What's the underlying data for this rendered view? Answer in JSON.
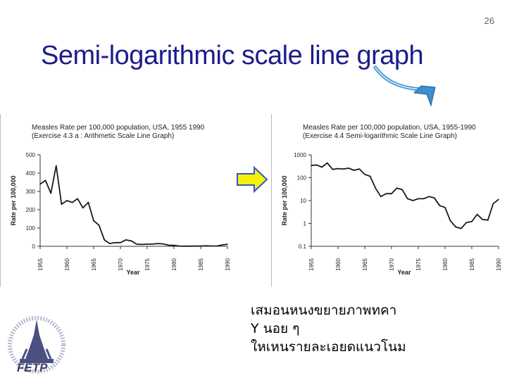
{
  "page_number": "26",
  "slide_title": "Semi-logarithmic scale line graph",
  "caption_lines": [
    "เสมอนหนงขยายภาพทคา",
    "Y นอย  ๆ",
    "ใหเหนรายละเอยดแนวโนม"
  ],
  "logo_text": "FETP",
  "colors": {
    "title": "#1c1c8c",
    "line": "#1a1a1a",
    "arrow_fill": "#f5f10a",
    "arrow_stroke": "#3355cc",
    "curve": "#3a8fd0"
  },
  "icons": {
    "curved_arrow": "curved-arrow-icon",
    "block_arrow": "right-arrow-icon",
    "logo": "temple-logo-icon"
  },
  "chart_data": [
    {
      "type": "line",
      "title": "Measles Rate per 100,000 population, USA, 1955 1990",
      "subtitle": "(Exercise 4.3 a : Arithmetic Scale Line Graph)",
      "xlabel": "Year",
      "ylabel": "Rate per 100,000",
      "yscale": "linear",
      "ylim": [
        0,
        500
      ],
      "yticks": [
        "0",
        "100",
        "200",
        "300",
        "400",
        "500"
      ],
      "xticks": [
        "1955",
        "1960",
        "1965",
        "1970",
        "1975",
        "1980",
        "1985",
        "1990"
      ],
      "x": [
        1955,
        1956,
        1957,
        1958,
        1959,
        1960,
        1961,
        1962,
        1963,
        1964,
        1965,
        1966,
        1967,
        1968,
        1969,
        1970,
        1971,
        1972,
        1973,
        1974,
        1975,
        1976,
        1977,
        1978,
        1979,
        1980,
        1981,
        1982,
        1983,
        1984,
        1985,
        1986,
        1987,
        1988,
        1989,
        1990
      ],
      "values": [
        340,
        360,
        290,
        440,
        230,
        250,
        240,
        260,
        210,
        240,
        140,
        115,
        35,
        15,
        20,
        20,
        35,
        30,
        12,
        10,
        12,
        12,
        15,
        13,
        6,
        5,
        1.3,
        0.7,
        0.6,
        1.1,
        1.2,
        2.5,
        1.5,
        1.4,
        7.3,
        11.2
      ]
    },
    {
      "type": "line",
      "title": "Measles Rate per 100,000 population, USA, 1955-1990",
      "subtitle": "(Exercise 4.4 Semi-logarithmic Scale Line Graph)",
      "xlabel": "Year",
      "ylabel": "Rate per 100,000",
      "yscale": "log",
      "ylim": [
        0.1,
        1000
      ],
      "yticks": [
        "0.1",
        "1",
        "10",
        "100",
        "1000"
      ],
      "xticks": [
        "1955",
        "1960",
        "1965",
        "1970",
        "1975",
        "1980",
        "1985",
        "1990"
      ],
      "x": [
        1955,
        1956,
        1957,
        1958,
        1959,
        1960,
        1961,
        1962,
        1963,
        1964,
        1965,
        1966,
        1967,
        1968,
        1969,
        1970,
        1971,
        1972,
        1973,
        1974,
        1975,
        1976,
        1977,
        1978,
        1979,
        1980,
        1981,
        1982,
        1983,
        1984,
        1985,
        1986,
        1987,
        1988,
        1989,
        1990
      ],
      "values": [
        340,
        360,
        290,
        440,
        230,
        250,
        240,
        260,
        210,
        240,
        140,
        115,
        35,
        15,
        20,
        20,
        35,
        30,
        12,
        10,
        12,
        12,
        15,
        13,
        6,
        5,
        1.3,
        0.7,
        0.6,
        1.1,
        1.2,
        2.5,
        1.5,
        1.4,
        7.3,
        11.2
      ]
    }
  ]
}
